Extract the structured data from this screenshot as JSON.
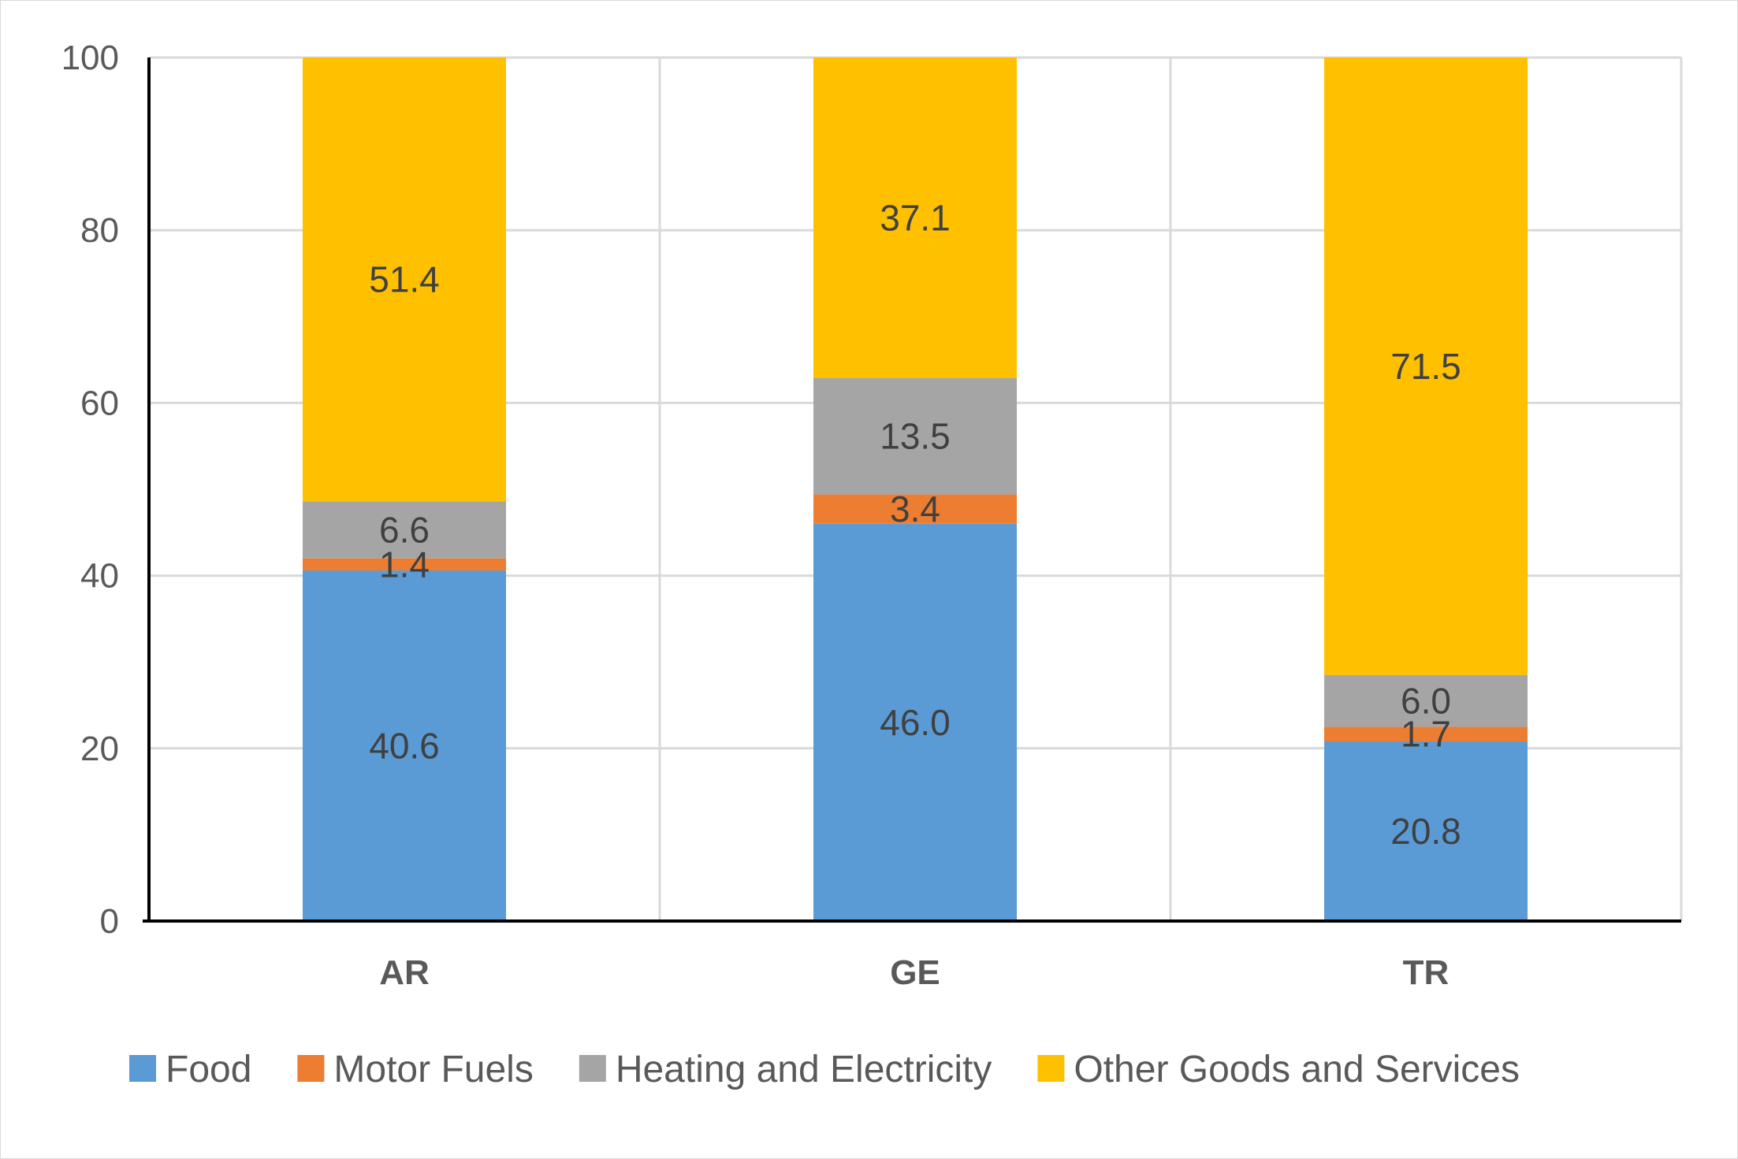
{
  "chart_data": {
    "type": "bar",
    "stacked": true,
    "categories": [
      "AR",
      "GE",
      "TR"
    ],
    "series": [
      {
        "name": "Food",
        "color": "#5b9bd5",
        "values": [
          40.6,
          46.0,
          20.8
        ],
        "labels": [
          "40.6",
          "46.0",
          "20.8"
        ]
      },
      {
        "name": "Motor Fuels",
        "color": "#ed7d31",
        "values": [
          1.4,
          3.4,
          1.7
        ],
        "labels": [
          "1.4",
          "3.4",
          "1.7"
        ]
      },
      {
        "name": "Heating and Electricity",
        "color": "#a5a5a5",
        "values": [
          6.6,
          13.5,
          6.0
        ],
        "labels": [
          "6.6",
          "13.5",
          "6.0"
        ]
      },
      {
        "name": "Other Goods and Services",
        "color": "#ffc000",
        "values": [
          51.4,
          37.1,
          71.5
        ],
        "labels": [
          "51.4",
          "37.1",
          "71.5"
        ]
      }
    ],
    "ylim": [
      0,
      100
    ],
    "yticks": [
      "0",
      "20",
      "40",
      "60",
      "80",
      "100"
    ],
    "grid": true,
    "legend_position": "bottom"
  }
}
